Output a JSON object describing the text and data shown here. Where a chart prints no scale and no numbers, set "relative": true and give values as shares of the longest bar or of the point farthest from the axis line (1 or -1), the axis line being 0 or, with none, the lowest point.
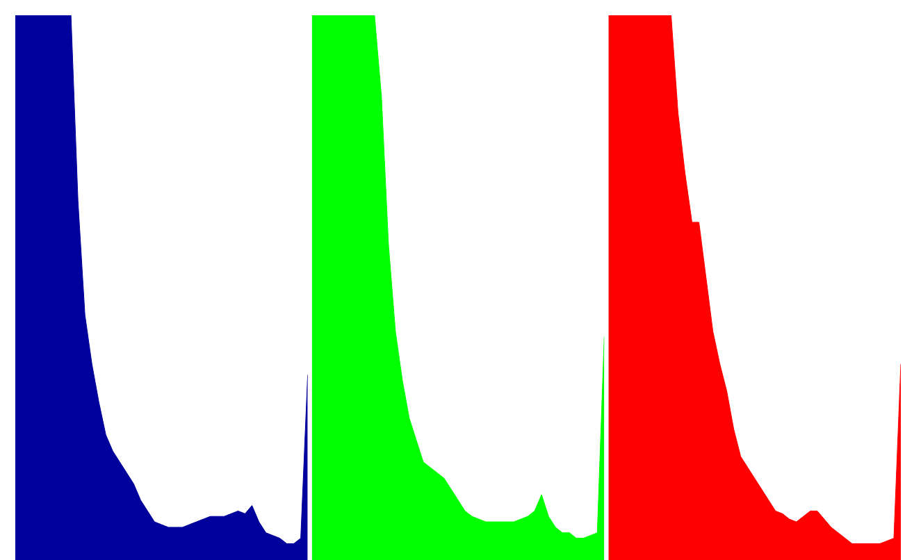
{
  "chart_data": [
    {
      "type": "area",
      "relative": true,
      "categories": [
        null,
        null,
        null,
        null,
        null,
        null,
        null,
        null,
        null,
        null,
        null,
        null,
        null,
        null,
        null,
        null,
        null,
        null,
        null,
        null,
        null,
        null,
        null,
        null,
        null,
        null,
        null,
        null,
        null,
        null,
        null,
        null,
        null,
        null,
        null,
        null,
        null,
        null,
        null,
        null,
        null,
        null,
        null
      ],
      "color": "#00009c",
      "values": [
        1,
        1,
        1,
        1,
        1,
        1,
        1,
        1,
        1,
        0.66,
        0.45,
        0.36,
        0.29,
        0.23,
        0.2,
        0.18,
        0.16,
        0.14,
        0.11,
        0.09,
        0.07,
        0.065,
        0.06,
        0.06,
        0.06,
        0.065,
        0.07,
        0.075,
        0.08,
        0.08,
        0.08,
        0.085,
        0.09,
        0.085,
        0.1,
        0.07,
        0.05,
        0.045,
        0.04,
        0.03,
        0.03,
        0.04,
        0.34
      ]
    },
    {
      "type": "area",
      "relative": true,
      "categories": [
        null,
        null,
        null,
        null,
        null,
        null,
        null,
        null,
        null,
        null,
        null,
        null,
        null,
        null,
        null,
        null,
        null,
        null,
        null,
        null,
        null,
        null,
        null,
        null,
        null,
        null,
        null,
        null,
        null,
        null,
        null,
        null,
        null,
        null,
        null,
        null,
        null,
        null,
        null,
        null,
        null,
        null,
        null
      ],
      "color": "#00ff00",
      "values": [
        1,
        1,
        1,
        1,
        1,
        1,
        1,
        1,
        1,
        1,
        0.85,
        0.58,
        0.42,
        0.33,
        0.26,
        0.22,
        0.18,
        0.17,
        0.16,
        0.15,
        0.13,
        0.11,
        0.09,
        0.08,
        0.075,
        0.07,
        0.07,
        0.07,
        0.07,
        0.07,
        0.075,
        0.08,
        0.09,
        0.12,
        0.08,
        0.06,
        0.05,
        0.05,
        0.04,
        0.04,
        0.045,
        0.05,
        0.41
      ]
    },
    {
      "type": "area",
      "relative": true,
      "categories": [
        null,
        null,
        null,
        null,
        null,
        null,
        null,
        null,
        null,
        null,
        null,
        null,
        null,
        null,
        null,
        null,
        null,
        null,
        null,
        null,
        null,
        null,
        null,
        null,
        null,
        null,
        null,
        null,
        null,
        null,
        null,
        null,
        null,
        null,
        null,
        null,
        null,
        null,
        null,
        null,
        null,
        null,
        null
      ],
      "color": "#ff0000",
      "values": [
        1,
        1,
        1,
        1,
        1,
        1,
        1,
        1,
        1,
        1,
        0.82,
        0.71,
        0.62,
        0.62,
        0.52,
        0.42,
        0.36,
        0.31,
        0.24,
        0.19,
        0.17,
        0.15,
        0.13,
        0.11,
        0.09,
        0.085,
        0.075,
        0.07,
        0.08,
        0.09,
        0.09,
        0.075,
        0.06,
        0.05,
        0.04,
        0.03,
        0.03,
        0.03,
        0.03,
        0.03,
        0.035,
        0.04,
        0.36
      ]
    }
  ]
}
